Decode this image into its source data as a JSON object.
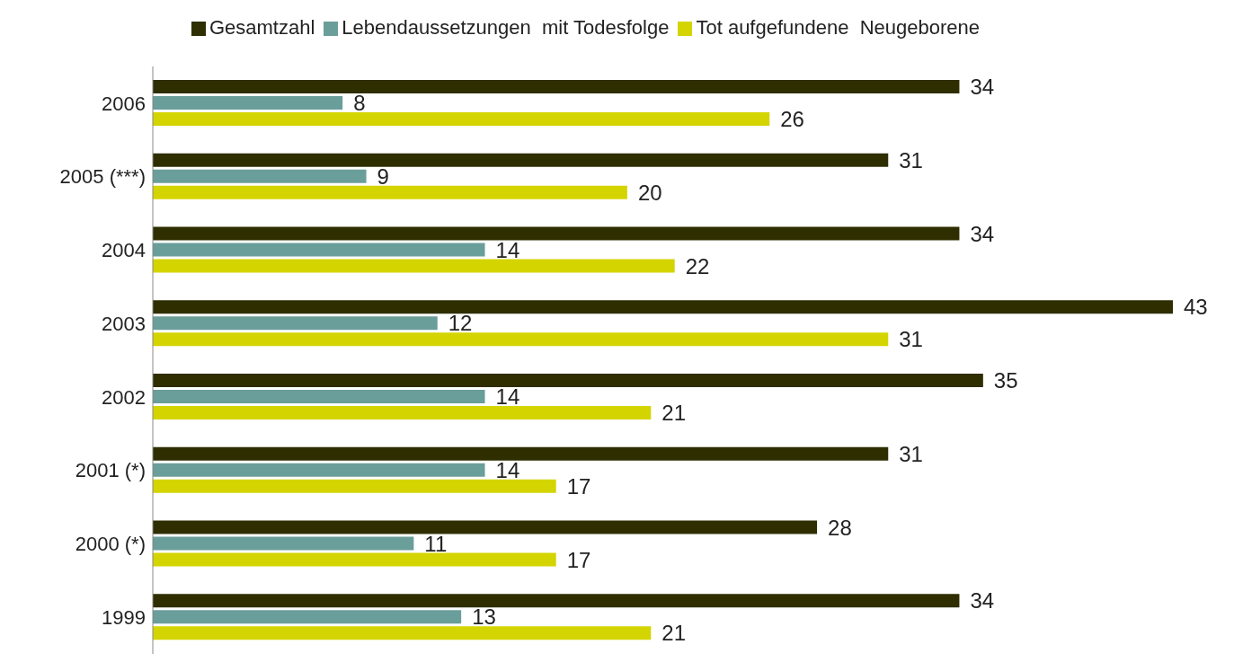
{
  "chart_data": {
    "type": "bar",
    "orientation": "horizontal",
    "categories": [
      "2006",
      "2005 (***)",
      "2004",
      "2003",
      "2002",
      "2001 (*)",
      "2000 (*)",
      "1999"
    ],
    "series": [
      {
        "name": "Gesamtzahl",
        "color": "#2e2e00",
        "values": [
          34,
          31,
          34,
          43,
          35,
          31,
          28,
          34
        ]
      },
      {
        "name": "Lebendaussetzungen  mit Todesfolge",
        "color": "#6a9e9a",
        "values": [
          8,
          9,
          14,
          12,
          14,
          14,
          11,
          13
        ]
      },
      {
        "name": "Tot aufgefundene  Neugeborene",
        "color": "#d4d400",
        "values": [
          26,
          20,
          22,
          31,
          21,
          17,
          17,
          21
        ]
      }
    ],
    "data_labels": true,
    "legend": "top",
    "grid": false
  }
}
